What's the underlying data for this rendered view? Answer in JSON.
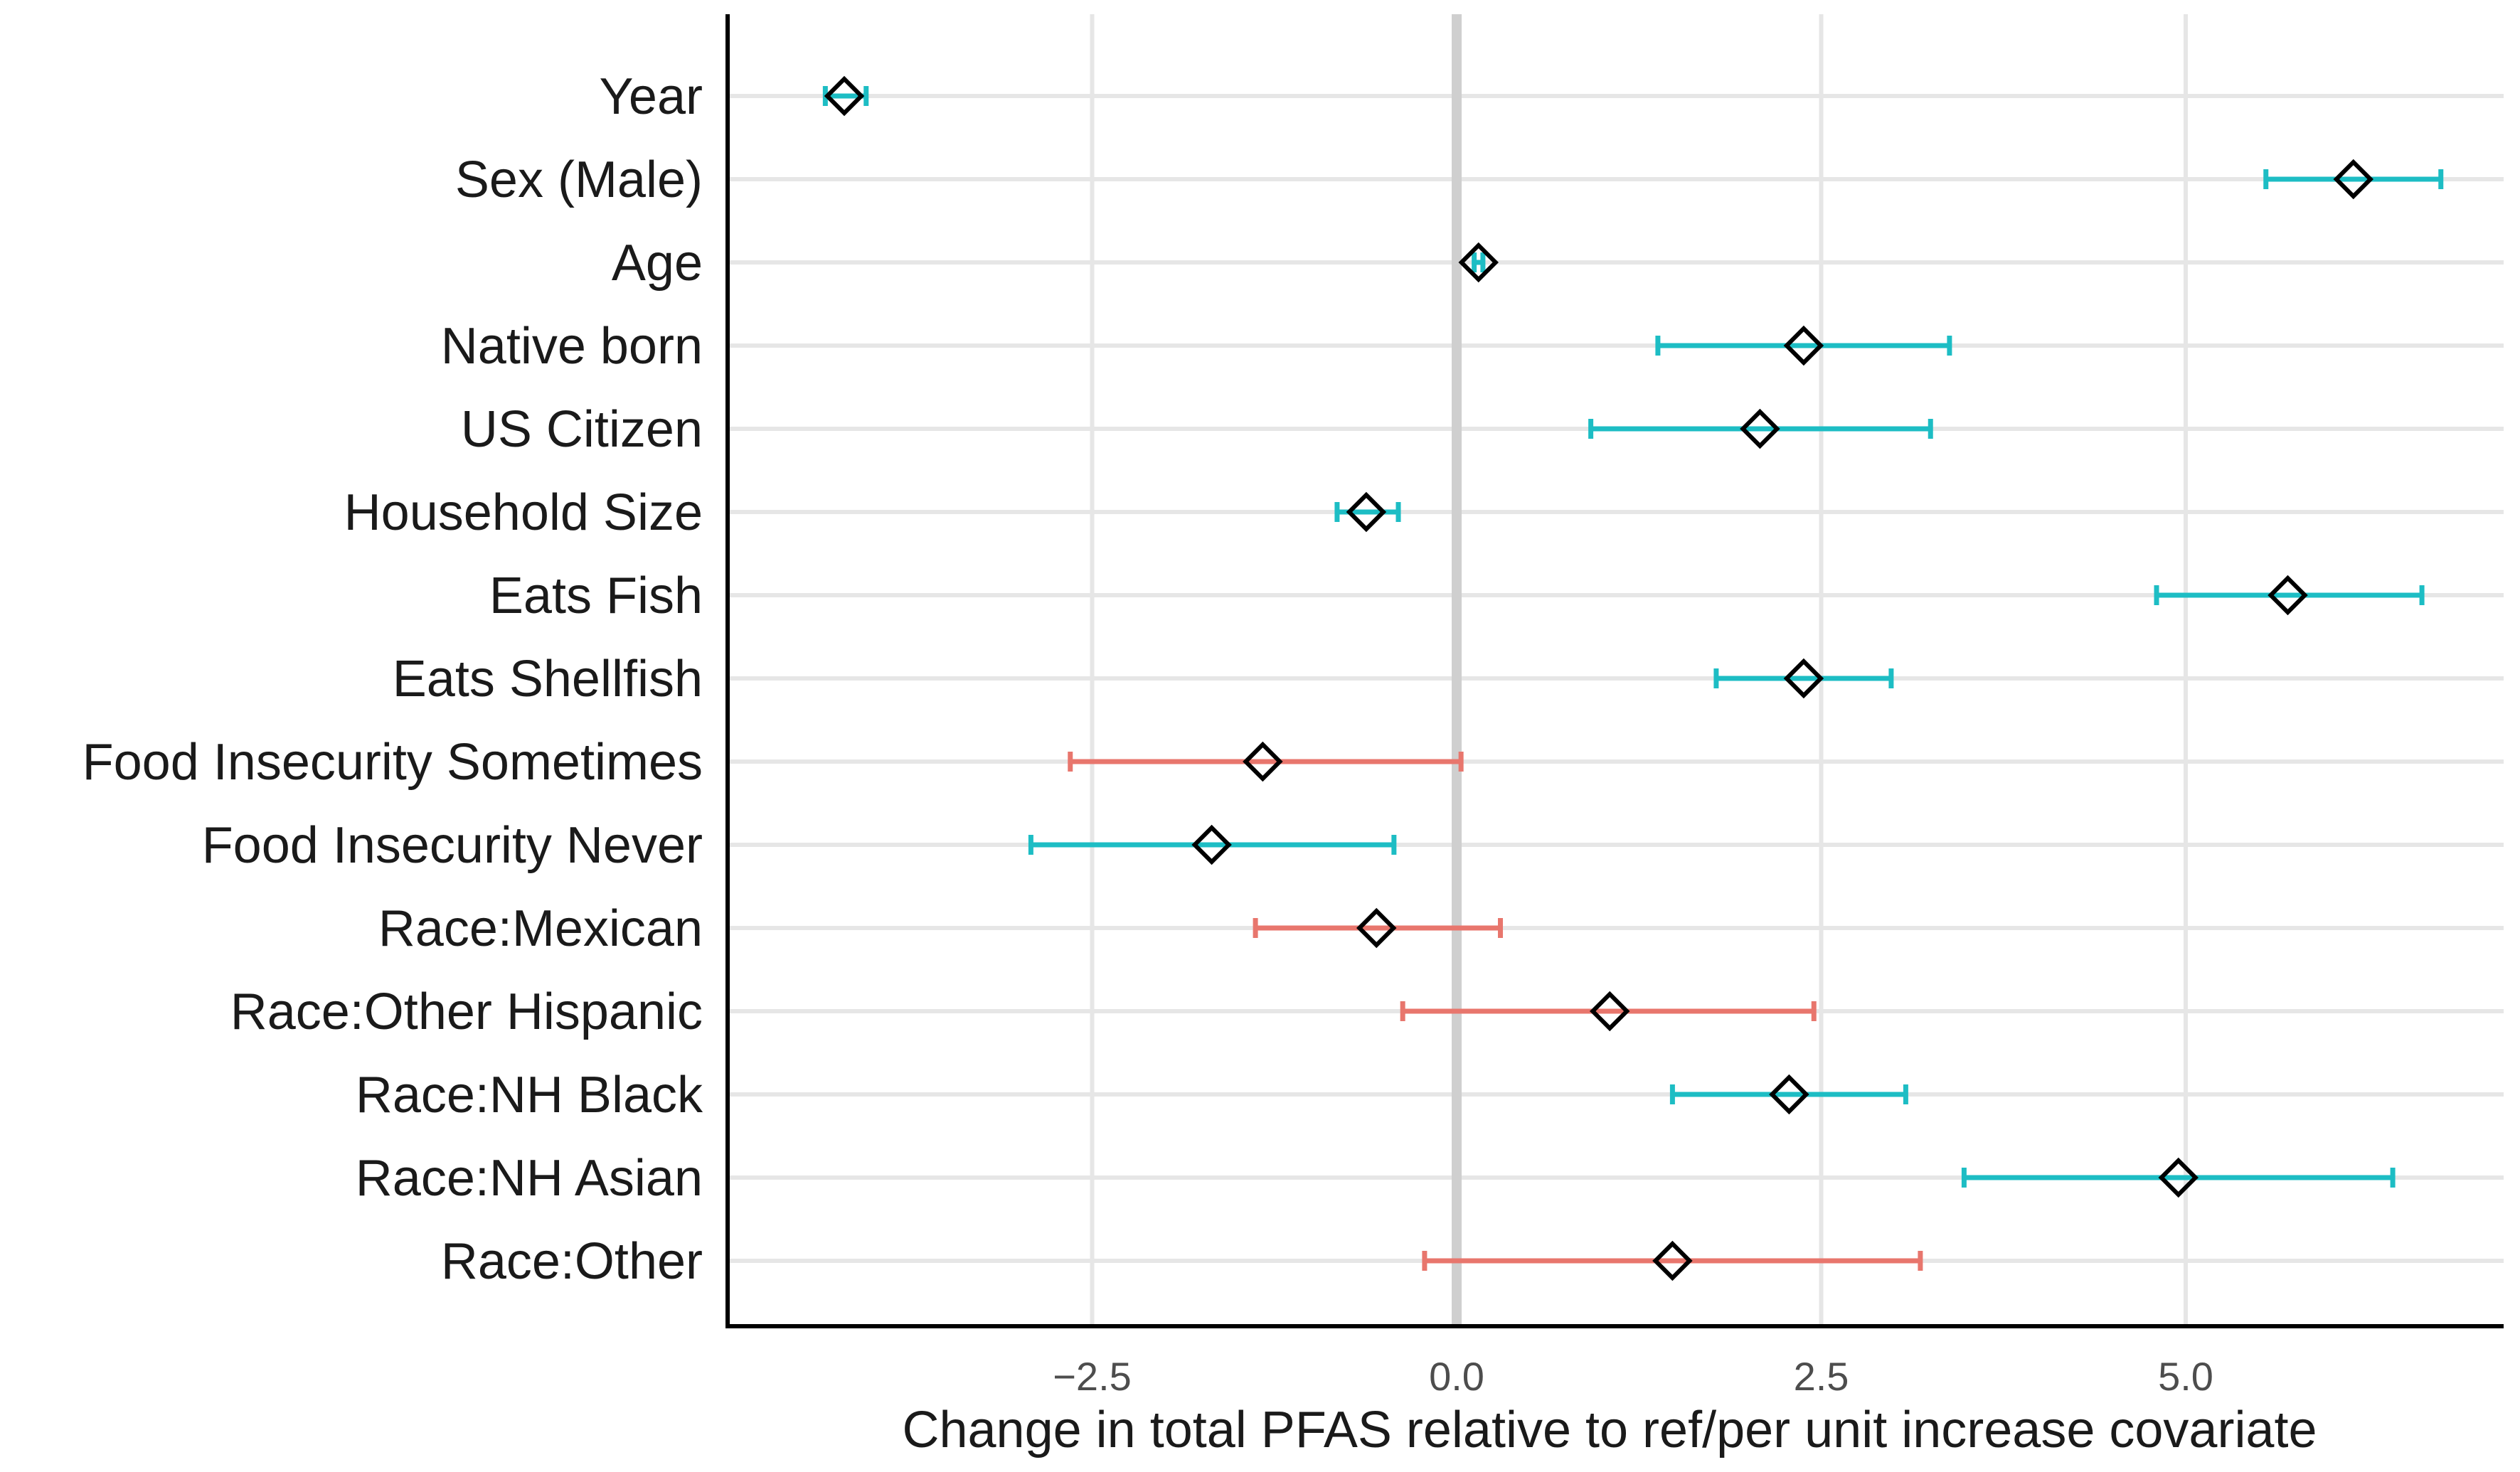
{
  "chart_data": {
    "type": "forest",
    "xlabel": "Change in total PFAS relative to ref/per unit increase covariate",
    "ylabel": "",
    "xlim": [
      -5.0,
      7.2
    ],
    "xticks": [
      -2.5,
      0.0,
      2.5,
      5.0
    ],
    "xtick_labels": [
      "−2.5",
      "0.0",
      "2.5",
      "5.0"
    ],
    "reference_line": 0,
    "grid": true,
    "colors": {
      "significant": "#1dbdc4",
      "not_significant": "#e8766d",
      "marker_edge": "#000000",
      "reference": "#cfcfcf"
    },
    "rows": [
      {
        "label": "Year",
        "estimate": -4.2,
        "lower": -4.33,
        "upper": -4.05,
        "significant": true
      },
      {
        "label": "Sex (Male)",
        "estimate": 6.15,
        "lower": 5.55,
        "upper": 6.75,
        "significant": true
      },
      {
        "label": "Age",
        "estimate": 0.15,
        "lower": 0.12,
        "upper": 0.18,
        "significant": true
      },
      {
        "label": "Native born",
        "estimate": 2.38,
        "lower": 1.38,
        "upper": 3.38,
        "significant": true
      },
      {
        "label": "US Citizen",
        "estimate": 2.08,
        "lower": 0.92,
        "upper": 3.25,
        "significant": true
      },
      {
        "label": "Household Size",
        "estimate": -0.62,
        "lower": -0.82,
        "upper": -0.4,
        "significant": true
      },
      {
        "label": "Eats Fish",
        "estimate": 5.7,
        "lower": 4.8,
        "upper": 6.62,
        "significant": true
      },
      {
        "label": "Eats Shellfish",
        "estimate": 2.38,
        "lower": 1.78,
        "upper": 2.98,
        "significant": true
      },
      {
        "label": "Food Insecurity Sometimes",
        "estimate": -1.33,
        "lower": -2.65,
        "upper": 0.03,
        "significant": false
      },
      {
        "label": "Food Insecurity Never",
        "estimate": -1.68,
        "lower": -2.92,
        "upper": -0.43,
        "significant": true
      },
      {
        "label": "Race:Mexican",
        "estimate": -0.55,
        "lower": -1.38,
        "upper": 0.3,
        "significant": false
      },
      {
        "label": "Race:Other Hispanic",
        "estimate": 1.05,
        "lower": -0.37,
        "upper": 2.45,
        "significant": false
      },
      {
        "label": "Race:NH Black",
        "estimate": 2.28,
        "lower": 1.48,
        "upper": 3.08,
        "significant": true
      },
      {
        "label": "Race:NH Asian",
        "estimate": 4.95,
        "lower": 3.48,
        "upper": 6.42,
        "significant": true
      },
      {
        "label": "Race:Other",
        "estimate": 1.48,
        "lower": -0.22,
        "upper": 3.18,
        "significant": false
      }
    ]
  }
}
